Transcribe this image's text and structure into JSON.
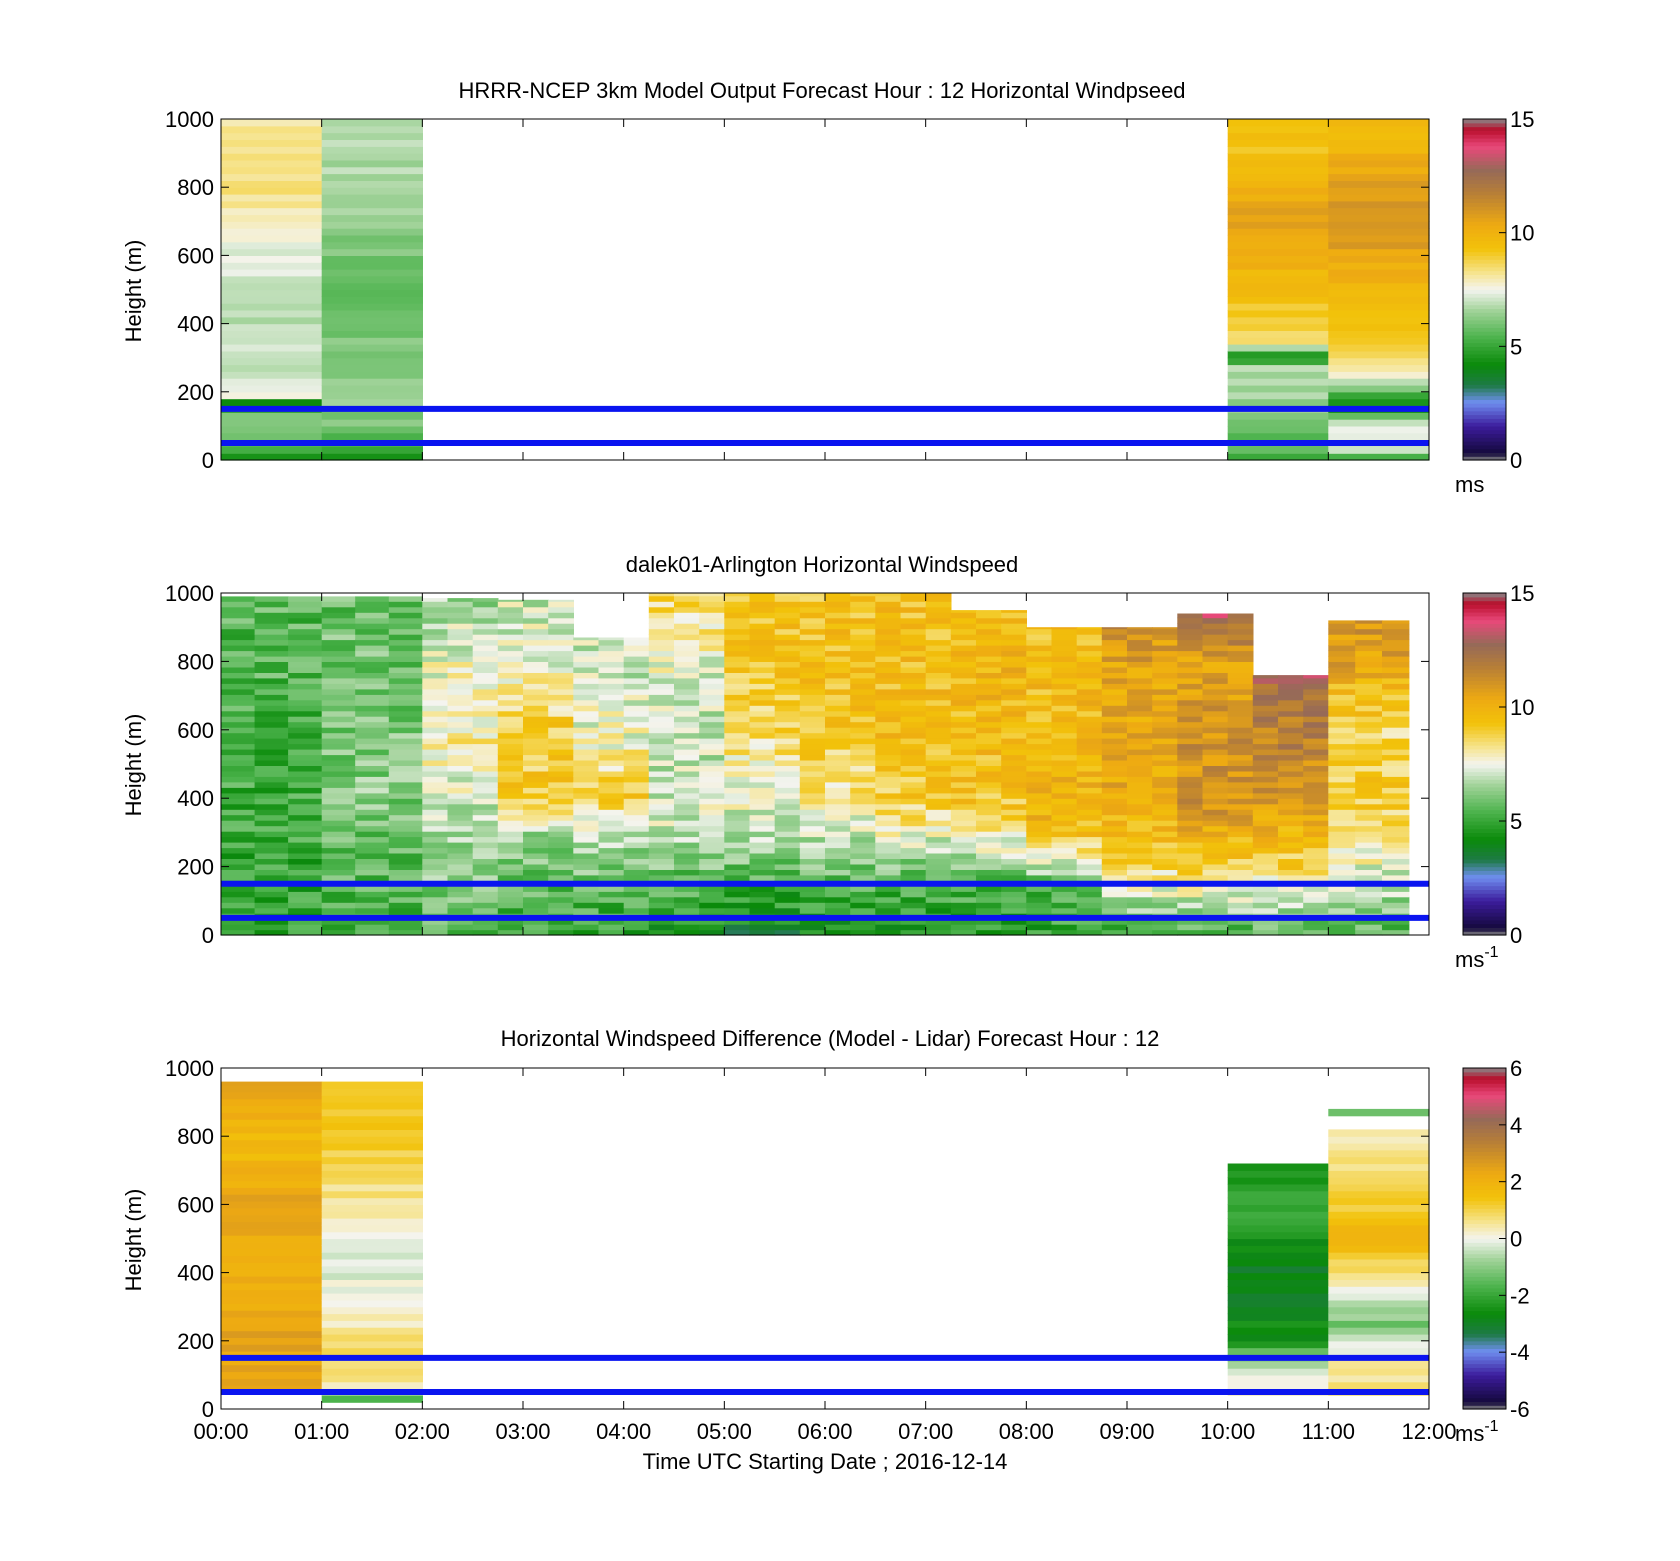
{
  "xlabel": "Time UTC  Starting Date ; 2016-12-14",
  "x_ticks": [
    "00:00",
    "01:00",
    "02:00",
    "03:00",
    "04:00",
    "05:00",
    "06:00",
    "07:00",
    "08:00",
    "09:00",
    "10:00",
    "11:00",
    "12:00"
  ],
  "reference_lines": {
    "heights_m": [
      150,
      50
    ],
    "color": "#0a14f0"
  },
  "chart_data": [
    {
      "type": "heatmap",
      "title": "HRRR-NCEP 3km Model Output   Forecast Hour : 12 Horizontal Windpseed",
      "ylabel": "Height (m)",
      "y_ticks": [
        "0",
        "200",
        "400",
        "600",
        "800",
        "1000"
      ],
      "xlim": [
        0,
        12
      ],
      "ylim": [
        0,
        1000
      ],
      "colorbar": {
        "ticks": [
          "0",
          "5",
          "10",
          "15"
        ],
        "range": [
          0,
          15
        ],
        "unit": "ms",
        "unit_sup": ""
      },
      "columns": [
        {
          "x0": 0,
          "x1": 1,
          "profile": [
            [
              0,
              4.5
            ],
            [
              30,
              5.5
            ],
            [
              60,
              6.0
            ],
            [
              110,
              6.5
            ],
            [
              180,
              4.0
            ],
            [
              190,
              7.3
            ],
            [
              250,
              7.0
            ],
            [
              400,
              6.8
            ],
            [
              600,
              7.2
            ],
            [
              700,
              7.8
            ],
            [
              800,
              8.4
            ],
            [
              1000,
              8.2
            ]
          ]
        },
        {
          "x0": 1,
          "x1": 2,
          "profile": [
            [
              0,
              4.5
            ],
            [
              30,
              5.0
            ],
            [
              60,
              5.5
            ],
            [
              100,
              6.0
            ],
            [
              200,
              6.5
            ],
            [
              300,
              6.3
            ],
            [
              400,
              6.0
            ],
            [
              500,
              5.8
            ],
            [
              600,
              6.0
            ],
            [
              800,
              6.6
            ],
            [
              1000,
              6.8
            ]
          ]
        },
        {
          "x0": 10,
          "x1": 11,
          "profile": [
            [
              0,
              4.5
            ],
            [
              30,
              5.5
            ],
            [
              150,
              6.3
            ],
            [
              280,
              6.9
            ],
            [
              300,
              3.8
            ],
            [
              350,
              8.2
            ],
            [
              400,
              9.0
            ],
            [
              500,
              9.5
            ],
            [
              600,
              10.2
            ],
            [
              700,
              10.8
            ],
            [
              800,
              10.0
            ],
            [
              900,
              9.3
            ],
            [
              1000,
              9.2
            ]
          ]
        },
        {
          "x0": 11,
          "x1": 12,
          "profile": [
            [
              0,
              4.5
            ],
            [
              30,
              6.8
            ],
            [
              100,
              7.6
            ],
            [
              150,
              4.0
            ],
            [
              260,
              7.8
            ],
            [
              310,
              8.6
            ],
            [
              400,
              9.2
            ],
            [
              500,
              9.8
            ],
            [
              600,
              10.5
            ],
            [
              700,
              11.0
            ],
            [
              800,
              10.7
            ],
            [
              900,
              10.0
            ],
            [
              1000,
              9.6
            ]
          ]
        }
      ]
    },
    {
      "type": "heatmap",
      "title": "dalek01-Arlington  Horizontal Windspeed",
      "ylabel": "Height (m)",
      "y_ticks": [
        "0",
        "200",
        "400",
        "600",
        "800",
        "1000"
      ],
      "xlim": [
        0,
        12
      ],
      "ylim": [
        0,
        1000
      ],
      "colorbar": {
        "ticks": [
          "0",
          "5",
          "10",
          "15"
        ],
        "range": [
          0,
          15
        ],
        "unit": "ms",
        "unit_sup": "-1"
      },
      "columns": [
        {
          "x0": 0.0,
          "x1": 1.0,
          "top": 990,
          "profile": [
            [
              0,
              4.8
            ],
            [
              200,
              5.0
            ],
            [
              500,
              5.2
            ],
            [
              800,
              5.5
            ],
            [
              1000,
              5.6
            ]
          ]
        },
        {
          "x0": 1.0,
          "x1": 2.0,
          "top": 990,
          "profile": [
            [
              0,
              5.0
            ],
            [
              200,
              5.6
            ],
            [
              400,
              6.2
            ],
            [
              700,
              6.0
            ],
            [
              1000,
              5.8
            ]
          ]
        },
        {
          "x0": 2.0,
          "x1": 2.75,
          "top": 985,
          "profile": [
            [
              0,
              5.5
            ],
            [
              200,
              6.3
            ],
            [
              400,
              7.2
            ],
            [
              550,
              8.0
            ],
            [
              800,
              7.5
            ],
            [
              1000,
              6.5
            ]
          ]
        },
        {
          "x0": 2.75,
          "x1": 3.5,
          "top": 980,
          "profile": [
            [
              0,
              5.0
            ],
            [
              150,
              5.8
            ],
            [
              300,
              6.5
            ],
            [
              400,
              9.0
            ],
            [
              600,
              9.0
            ],
            [
              800,
              7.5
            ],
            [
              1000,
              7.0
            ]
          ]
        },
        {
          "x0": 3.5,
          "x1": 4.25,
          "top": 870,
          "profile": [
            [
              0,
              4.8
            ],
            [
              150,
              5.8
            ],
            [
              300,
              6.8
            ],
            [
              400,
              9.0
            ],
            [
              600,
              7.5
            ],
            [
              800,
              7.0
            ]
          ]
        },
        {
          "x0": 4.25,
          "x1": 5.0,
          "top": 1000,
          "profile": [
            [
              0,
              4.5
            ],
            [
              150,
              5.5
            ],
            [
              300,
              7.0
            ],
            [
              400,
              7.2
            ],
            [
              600,
              6.8
            ],
            [
              800,
              7.5
            ],
            [
              1000,
              8.8
            ]
          ]
        },
        {
          "x0": 5.0,
          "x1": 5.75,
          "top": 1000,
          "profile": [
            [
              0,
              4.0
            ],
            [
              150,
              5.2
            ],
            [
              300,
              7.0
            ],
            [
              400,
              7.4
            ],
            [
              600,
              8.6
            ],
            [
              800,
              9.2
            ],
            [
              1000,
              9.3
            ]
          ]
        },
        {
          "x0": 5.75,
          "x1": 6.5,
          "top": 1000,
          "profile": [
            [
              0,
              4.5
            ],
            [
              150,
              5.5
            ],
            [
              300,
              7.2
            ],
            [
              400,
              8.0
            ],
            [
              600,
              9.3
            ],
            [
              800,
              9.5
            ],
            [
              1000,
              9.3
            ]
          ]
        },
        {
          "x0": 6.5,
          "x1": 7.25,
          "top": 1000,
          "profile": [
            [
              0,
              4.5
            ],
            [
              150,
              5.3
            ],
            [
              300,
              7.6
            ],
            [
              400,
              9.0
            ],
            [
              600,
              9.6
            ],
            [
              800,
              9.5
            ],
            [
              1000,
              9.4
            ]
          ]
        },
        {
          "x0": 7.25,
          "x1": 8.0,
          "top": 950,
          "profile": [
            [
              0,
              4.8
            ],
            [
              150,
              5.5
            ],
            [
              300,
              8.0
            ],
            [
              400,
              9.3
            ],
            [
              600,
              9.6
            ],
            [
              800,
              9.8
            ],
            [
              1000,
              9.5
            ]
          ]
        },
        {
          "x0": 8.0,
          "x1": 8.75,
          "top": 900,
          "profile": [
            [
              0,
              4.8
            ],
            [
              150,
              5.6
            ],
            [
              300,
              9.5
            ],
            [
              400,
              10.0
            ],
            [
              600,
              9.7
            ],
            [
              800,
              9.5
            ]
          ]
        },
        {
          "x0": 8.75,
          "x1": 9.5,
          "top": 900,
          "profile": [
            [
              0,
              5.0
            ],
            [
              200,
              8.5
            ],
            [
              400,
              10.5
            ],
            [
              600,
              10.2
            ],
            [
              800,
              10.6
            ],
            [
              900,
              11.2
            ]
          ]
        },
        {
          "x0": 9.5,
          "x1": 10.25,
          "top": 940,
          "profile": [
            [
              0,
              5.0
            ],
            [
              200,
              9.0
            ],
            [
              400,
              11.2
            ],
            [
              600,
              11.0
            ],
            [
              800,
              10.5
            ],
            [
              940,
              13.0
            ]
          ]
        },
        {
          "x0": 10.25,
          "x1": 11.0,
          "top": 760,
          "profile": [
            [
              0,
              5.2
            ],
            [
              200,
              8.8
            ],
            [
              400,
              10.8
            ],
            [
              600,
              11.8
            ],
            [
              760,
              12.8
            ]
          ]
        },
        {
          "x0": 11.0,
          "x1": 11.8,
          "top": 920,
          "profile": [
            [
              0,
              5.5
            ],
            [
              200,
              7.5
            ],
            [
              400,
              9.0
            ],
            [
              600,
              8.6
            ],
            [
              800,
              10.5
            ],
            [
              920,
              11.0
            ]
          ]
        }
      ]
    },
    {
      "type": "heatmap",
      "title": "Horizontal Windspeed Difference (Model - Lidar) Forecast Hour : 12",
      "ylabel": "Height (m)",
      "y_ticks": [
        "0",
        "200",
        "400",
        "600",
        "800",
        "1000"
      ],
      "xlim": [
        0,
        12
      ],
      "ylim": [
        0,
        1000
      ],
      "colorbar": {
        "ticks": [
          "-6",
          "-4",
          "-2",
          "0",
          "2",
          "4",
          "6"
        ],
        "range": [
          -6,
          6
        ],
        "unit": "ms",
        "unit_sup": "-1"
      },
      "columns": [
        {
          "x0": 0,
          "x1": 1,
          "bottom": 50,
          "top": 960,
          "profile": [
            [
              50,
              2.2
            ],
            [
              200,
              2.5
            ],
            [
              400,
              2.0
            ],
            [
              600,
              2.4
            ],
            [
              800,
              1.6
            ],
            [
              960,
              2.6
            ]
          ]
        },
        {
          "x0": 1,
          "x1": 2,
          "bottom": 20,
          "top": 960,
          "profile": [
            [
              20,
              -2.0
            ],
            [
              80,
              0.5
            ],
            [
              150,
              0.8
            ],
            [
              300,
              0.3
            ],
            [
              400,
              -0.2
            ],
            [
              500,
              0.0
            ],
            [
              600,
              0.5
            ],
            [
              800,
              1.2
            ],
            [
              960,
              1.5
            ]
          ]
        },
        {
          "x0": 10,
          "x1": 11,
          "bottom": 40,
          "top": 720,
          "profile": [
            [
              40,
              0.6
            ],
            [
              150,
              -0.8
            ],
            [
              200,
              -2.5
            ],
            [
              350,
              -3.0
            ],
            [
              450,
              -2.8
            ],
            [
              600,
              -1.8
            ],
            [
              720,
              -2.5
            ]
          ]
        },
        {
          "x0": 11,
          "x1": 12,
          "bottom": 40,
          "top": 820,
          "profile": [
            [
              40,
              0.8
            ],
            [
              150,
              0.5
            ],
            [
              250,
              -1.2
            ],
            [
              380,
              0.4
            ],
            [
              500,
              2.0
            ],
            [
              600,
              1.2
            ],
            [
              700,
              0.9
            ],
            [
              820,
              0.2
            ]
          ]
        },
        {
          "x0": 11,
          "x1": 12,
          "bottom": 860,
          "top": 880,
          "profile": [
            [
              860,
              -1.5
            ],
            [
              880,
              -1.5
            ]
          ]
        }
      ]
    }
  ]
}
